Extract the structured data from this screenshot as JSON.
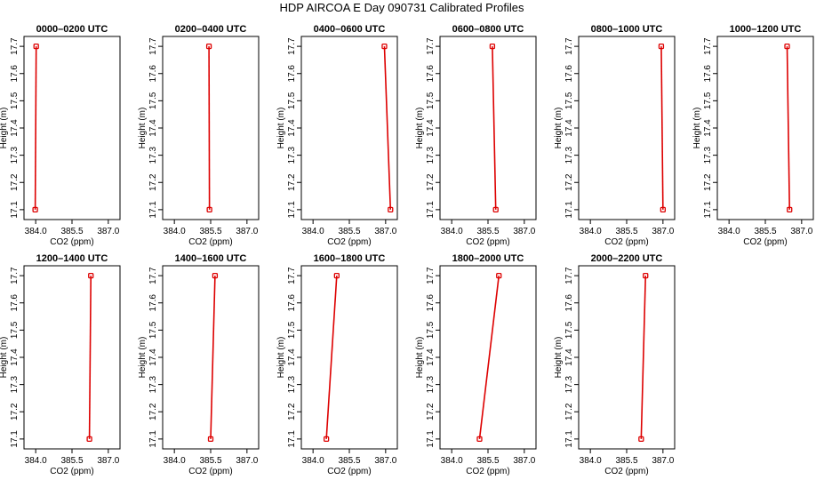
{
  "title": "HDP AIRCOA E  Day 090731  Calibrated Profiles",
  "colors": {
    "series": "#dd0000",
    "axis": "#000000",
    "background": "#ffffff"
  },
  "chart_data": [
    {
      "type": "line",
      "title": "0000–0200 UTC",
      "xlabel": "CO2 (ppm)",
      "ylabel": "Height (m)",
      "xlim": [
        383.7,
        387.3
      ],
      "ylim": [
        17.08,
        17.72
      ],
      "grid": false,
      "xticks": [
        "384.0",
        "385.5",
        "387.0"
      ],
      "yticks": [
        "17.1",
        "17.2",
        "17.3",
        "17.4",
        "17.5",
        "17.6",
        "17.7"
      ],
      "series": [
        {
          "x": [
            383.98,
            384.02
          ],
          "y": [
            17.1,
            17.7
          ]
        }
      ]
    },
    {
      "type": "line",
      "title": "0200–0400 UTC",
      "xlabel": "CO2 (ppm)",
      "ylabel": "Height (m)",
      "xlim": [
        383.7,
        387.3
      ],
      "ylim": [
        17.08,
        17.72
      ],
      "grid": false,
      "xticks": [
        "384.0",
        "385.5",
        "387.0"
      ],
      "yticks": [
        "17.1",
        "17.2",
        "17.3",
        "17.4",
        "17.5",
        "17.6",
        "17.7"
      ],
      "series": [
        {
          "x": [
            385.45,
            385.43
          ],
          "y": [
            17.1,
            17.7
          ]
        }
      ]
    },
    {
      "type": "line",
      "title": "0400–0600 UTC",
      "xlabel": "CO2 (ppm)",
      "ylabel": "Height (m)",
      "xlim": [
        383.7,
        387.3
      ],
      "ylim": [
        17.08,
        17.72
      ],
      "grid": false,
      "xticks": [
        "384.0",
        "385.5",
        "387.0"
      ],
      "yticks": [
        "17.1",
        "17.2",
        "17.3",
        "17.4",
        "17.5",
        "17.6",
        "17.7"
      ],
      "series": [
        {
          "x": [
            387.2,
            386.95
          ],
          "y": [
            17.1,
            17.7
          ]
        }
      ]
    },
    {
      "type": "line",
      "title": "0600–0800 UTC",
      "xlabel": "CO2 (ppm)",
      "ylabel": "Height (m)",
      "xlim": [
        383.7,
        387.3
      ],
      "ylim": [
        17.08,
        17.72
      ],
      "grid": false,
      "xticks": [
        "384.0",
        "385.5",
        "387.0"
      ],
      "yticks": [
        "17.1",
        "17.2",
        "17.3",
        "17.4",
        "17.5",
        "17.6",
        "17.7"
      ],
      "series": [
        {
          "x": [
            385.82,
            385.68
          ],
          "y": [
            17.1,
            17.7
          ]
        }
      ]
    },
    {
      "type": "line",
      "title": "0800–1000 UTC",
      "xlabel": "CO2 (ppm)",
      "ylabel": "Height (m)",
      "xlim": [
        383.7,
        387.3
      ],
      "ylim": [
        17.08,
        17.72
      ],
      "grid": false,
      "xticks": [
        "384.0",
        "385.5",
        "387.0"
      ],
      "yticks": [
        "17.1",
        "17.2",
        "17.3",
        "17.4",
        "17.5",
        "17.6",
        "17.7"
      ],
      "series": [
        {
          "x": [
            387.0,
            386.93
          ],
          "y": [
            17.1,
            17.7
          ]
        }
      ]
    },
    {
      "type": "line",
      "title": "1000–1200 UTC",
      "xlabel": "CO2 (ppm)",
      "ylabel": "Height (m)",
      "xlim": [
        383.7,
        387.3
      ],
      "ylim": [
        17.08,
        17.72
      ],
      "grid": false,
      "xticks": [
        "384.0",
        "385.5",
        "387.0"
      ],
      "yticks": [
        "17.1",
        "17.2",
        "17.3",
        "17.4",
        "17.5",
        "17.6",
        "17.7"
      ],
      "series": [
        {
          "x": [
            386.5,
            386.4
          ],
          "y": [
            17.1,
            17.7
          ]
        }
      ]
    },
    {
      "type": "line",
      "title": "1200–1400 UTC",
      "xlabel": "CO2 (ppm)",
      "ylabel": "Height (m)",
      "xlim": [
        383.7,
        387.3
      ],
      "ylim": [
        17.08,
        17.72
      ],
      "grid": false,
      "xticks": [
        "384.0",
        "385.5",
        "387.0"
      ],
      "yticks": [
        "17.1",
        "17.2",
        "17.3",
        "17.4",
        "17.5",
        "17.6",
        "17.7"
      ],
      "series": [
        {
          "x": [
            386.22,
            386.28
          ],
          "y": [
            17.1,
            17.7
          ]
        }
      ]
    },
    {
      "type": "line",
      "title": "1400–1600 UTC",
      "xlabel": "CO2 (ppm)",
      "ylabel": "Height (m)",
      "xlim": [
        383.7,
        387.3
      ],
      "ylim": [
        17.08,
        17.72
      ],
      "grid": false,
      "xticks": [
        "384.0",
        "385.5",
        "387.0"
      ],
      "yticks": [
        "17.1",
        "17.2",
        "17.3",
        "17.4",
        "17.5",
        "17.6",
        "17.7"
      ],
      "series": [
        {
          "x": [
            385.5,
            385.68
          ],
          "y": [
            17.1,
            17.7
          ]
        }
      ]
    },
    {
      "type": "line",
      "title": "1600–1800 UTC",
      "xlabel": "CO2 (ppm)",
      "ylabel": "Height (m)",
      "xlim": [
        383.7,
        387.3
      ],
      "ylim": [
        17.08,
        17.72
      ],
      "grid": false,
      "xticks": [
        "384.0",
        "385.5",
        "387.0"
      ],
      "yticks": [
        "17.1",
        "17.2",
        "17.3",
        "17.4",
        "17.5",
        "17.6",
        "17.7"
      ],
      "series": [
        {
          "x": [
            384.55,
            384.98
          ],
          "y": [
            17.1,
            17.7
          ]
        }
      ]
    },
    {
      "type": "line",
      "title": "1800–2000 UTC",
      "xlabel": "CO2 (ppm)",
      "ylabel": "Height (m)",
      "xlim": [
        383.7,
        387.3
      ],
      "ylim": [
        17.08,
        17.72
      ],
      "grid": false,
      "xticks": [
        "384.0",
        "385.5",
        "387.0"
      ],
      "yticks": [
        "17.1",
        "17.2",
        "17.3",
        "17.4",
        "17.5",
        "17.6",
        "17.7"
      ],
      "series": [
        {
          "x": [
            385.15,
            385.95
          ],
          "y": [
            17.1,
            17.7
          ]
        }
      ]
    },
    {
      "type": "line",
      "title": "2000–2200 UTC",
      "xlabel": "CO2 (ppm)",
      "ylabel": "Height (m)",
      "xlim": [
        383.7,
        387.3
      ],
      "ylim": [
        17.08,
        17.72
      ],
      "grid": false,
      "xticks": [
        "384.0",
        "385.5",
        "387.0"
      ],
      "yticks": [
        "17.1",
        "17.2",
        "17.3",
        "17.4",
        "17.5",
        "17.6",
        "17.7"
      ],
      "series": [
        {
          "x": [
            386.1,
            386.28
          ],
          "y": [
            17.1,
            17.7
          ]
        }
      ]
    }
  ]
}
